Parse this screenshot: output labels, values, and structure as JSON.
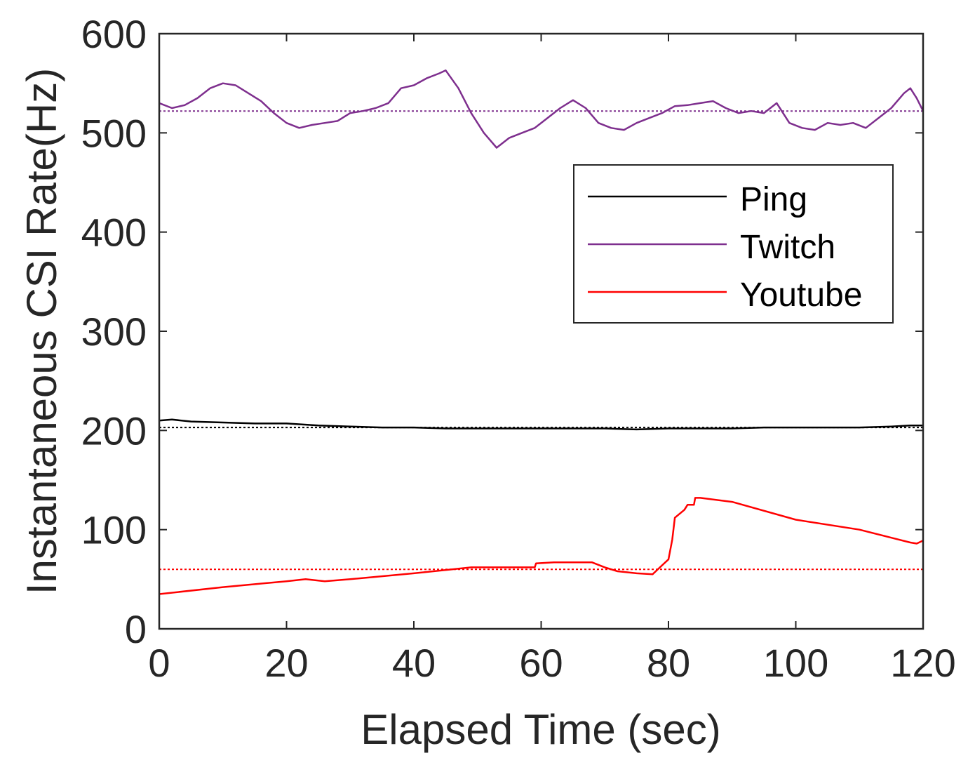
{
  "chart_data": {
    "type": "line",
    "title": "",
    "xlabel": "Elapsed Time (sec)",
    "ylabel": "Instantaneous CSI Rate(Hz)",
    "xlim": [
      0,
      120
    ],
    "ylim": [
      0,
      600
    ],
    "xticks": [
      0,
      20,
      40,
      60,
      80,
      100,
      120
    ],
    "yticks": [
      0,
      100,
      200,
      300,
      400,
      500,
      600
    ],
    "grid": false,
    "legend_position": "right-center",
    "series": [
      {
        "name": "Ping",
        "color": "#000000",
        "mean": 203,
        "x": [
          0,
          2,
          5,
          10,
          15,
          20,
          25,
          30,
          35,
          40,
          45,
          50,
          55,
          60,
          65,
          70,
          75,
          80,
          85,
          90,
          95,
          100,
          105,
          110,
          115,
          118,
          120
        ],
        "y": [
          210,
          211,
          209,
          208,
          207,
          207,
          205,
          204,
          203,
          203,
          202,
          202,
          202,
          202,
          202,
          202,
          201,
          202,
          202,
          202,
          203,
          203,
          203,
          203,
          204,
          205,
          205
        ]
      },
      {
        "name": "Twitch",
        "color": "#7E2F8E",
        "mean": 522,
        "x": [
          0,
          2,
          4,
          6,
          8,
          10,
          12,
          14,
          16,
          18,
          20,
          22,
          24,
          26,
          28,
          30,
          32,
          34,
          36,
          38,
          40,
          42,
          44,
          45,
          47,
          49,
          51,
          53,
          55,
          57,
          59,
          61,
          63,
          65,
          67,
          69,
          71,
          73,
          75,
          77,
          79,
          81,
          83,
          85,
          87,
          89,
          91,
          93,
          95,
          97,
          99,
          101,
          103,
          105,
          107,
          109,
          111,
          113,
          115,
          117,
          118,
          119,
          120
        ],
        "y": [
          530,
          525,
          528,
          535,
          545,
          550,
          548,
          540,
          532,
          520,
          510,
          505,
          508,
          510,
          512,
          520,
          522,
          525,
          530,
          545,
          548,
          555,
          560,
          563,
          545,
          520,
          500,
          485,
          495,
          500,
          505,
          515,
          525,
          533,
          525,
          510,
          505,
          503,
          510,
          515,
          520,
          527,
          528,
          530,
          532,
          525,
          520,
          522,
          520,
          530,
          510,
          505,
          503,
          510,
          508,
          510,
          505,
          515,
          525,
          540,
          545,
          535,
          522
        ]
      },
      {
        "name": "Youtube",
        "color": "#FF0000",
        "mean": 60,
        "x": [
          0,
          10,
          20,
          23,
          26,
          30,
          40,
          49,
          55,
          59,
          59.2,
          62,
          66,
          68,
          70,
          72,
          75,
          77.5,
          79,
          80,
          80.6,
          81,
          82.5,
          83,
          84,
          84.2,
          85,
          90,
          100,
          110,
          118,
          119,
          120
        ],
        "y": [
          35,
          42,
          48,
          50,
          48,
          50,
          56,
          62,
          62,
          62,
          66,
          67,
          67,
          67,
          62,
          58,
          56,
          55,
          64,
          70,
          90,
          112,
          120,
          125,
          125,
          132,
          132,
          128,
          110,
          100,
          87,
          86,
          89
        ]
      }
    ]
  }
}
